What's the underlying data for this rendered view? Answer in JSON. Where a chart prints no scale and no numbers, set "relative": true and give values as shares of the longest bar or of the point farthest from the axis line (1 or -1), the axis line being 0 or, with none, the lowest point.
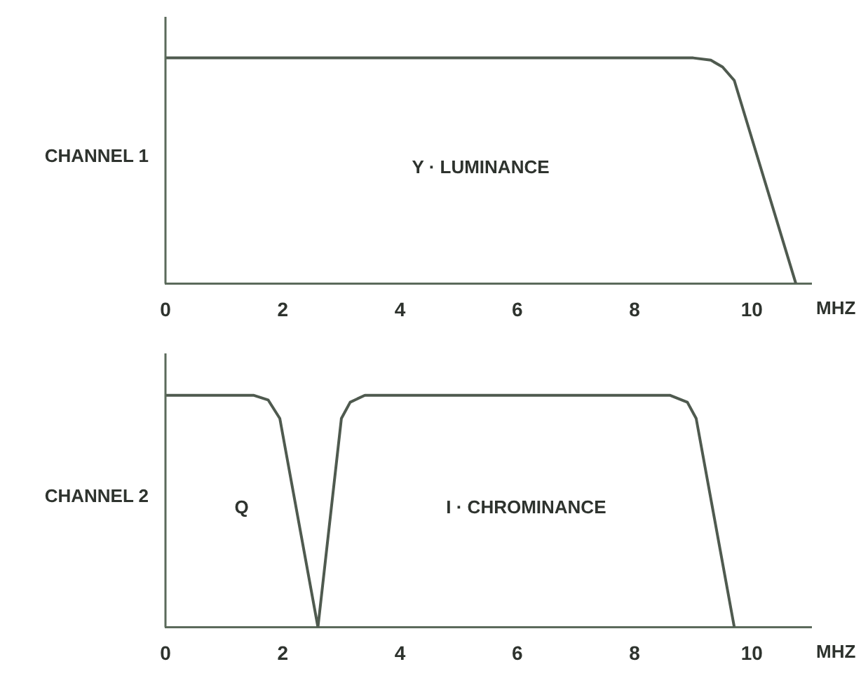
{
  "chart_data": [
    {
      "type": "line",
      "relative": true,
      "ylabel": "CHANNEL 1",
      "xlabel": "MHZ",
      "xlim": [
        0,
        11
      ],
      "xticks": [
        0,
        2,
        4,
        6,
        8,
        10
      ],
      "grid": false,
      "legend": false,
      "marker": "none",
      "line_style": "solid",
      "series": [
        {
          "color": "#4f5a4f",
          "x": [
            0,
            9.0,
            9.3,
            9.5,
            9.7,
            10.75
          ],
          "values": [
            1,
            1,
            0.99,
            0.96,
            0.9,
            0
          ]
        }
      ],
      "annotations": [
        "Y · LUMINANCE"
      ]
    },
    {
      "type": "line",
      "relative": true,
      "ylabel": "CHANNEL 2",
      "xlabel": "MHZ",
      "xlim": [
        0,
        11
      ],
      "xticks": [
        0,
        2,
        4,
        6,
        8,
        10
      ],
      "grid": false,
      "legend": false,
      "marker": "none",
      "line_style": "solid",
      "series": [
        {
          "color": "#4f5a4f",
          "x": [
            0,
            1.5,
            1.75,
            1.95,
            2.6,
            3.0,
            3.15,
            3.4,
            8.6,
            8.9,
            9.05,
            9.7
          ],
          "values": [
            1,
            1,
            0.98,
            0.9,
            0,
            0.9,
            0.97,
            1,
            1,
            0.97,
            0.9,
            0
          ]
        }
      ],
      "annotations": [
        "Q",
        "I · CHROMINANCE"
      ]
    }
  ]
}
